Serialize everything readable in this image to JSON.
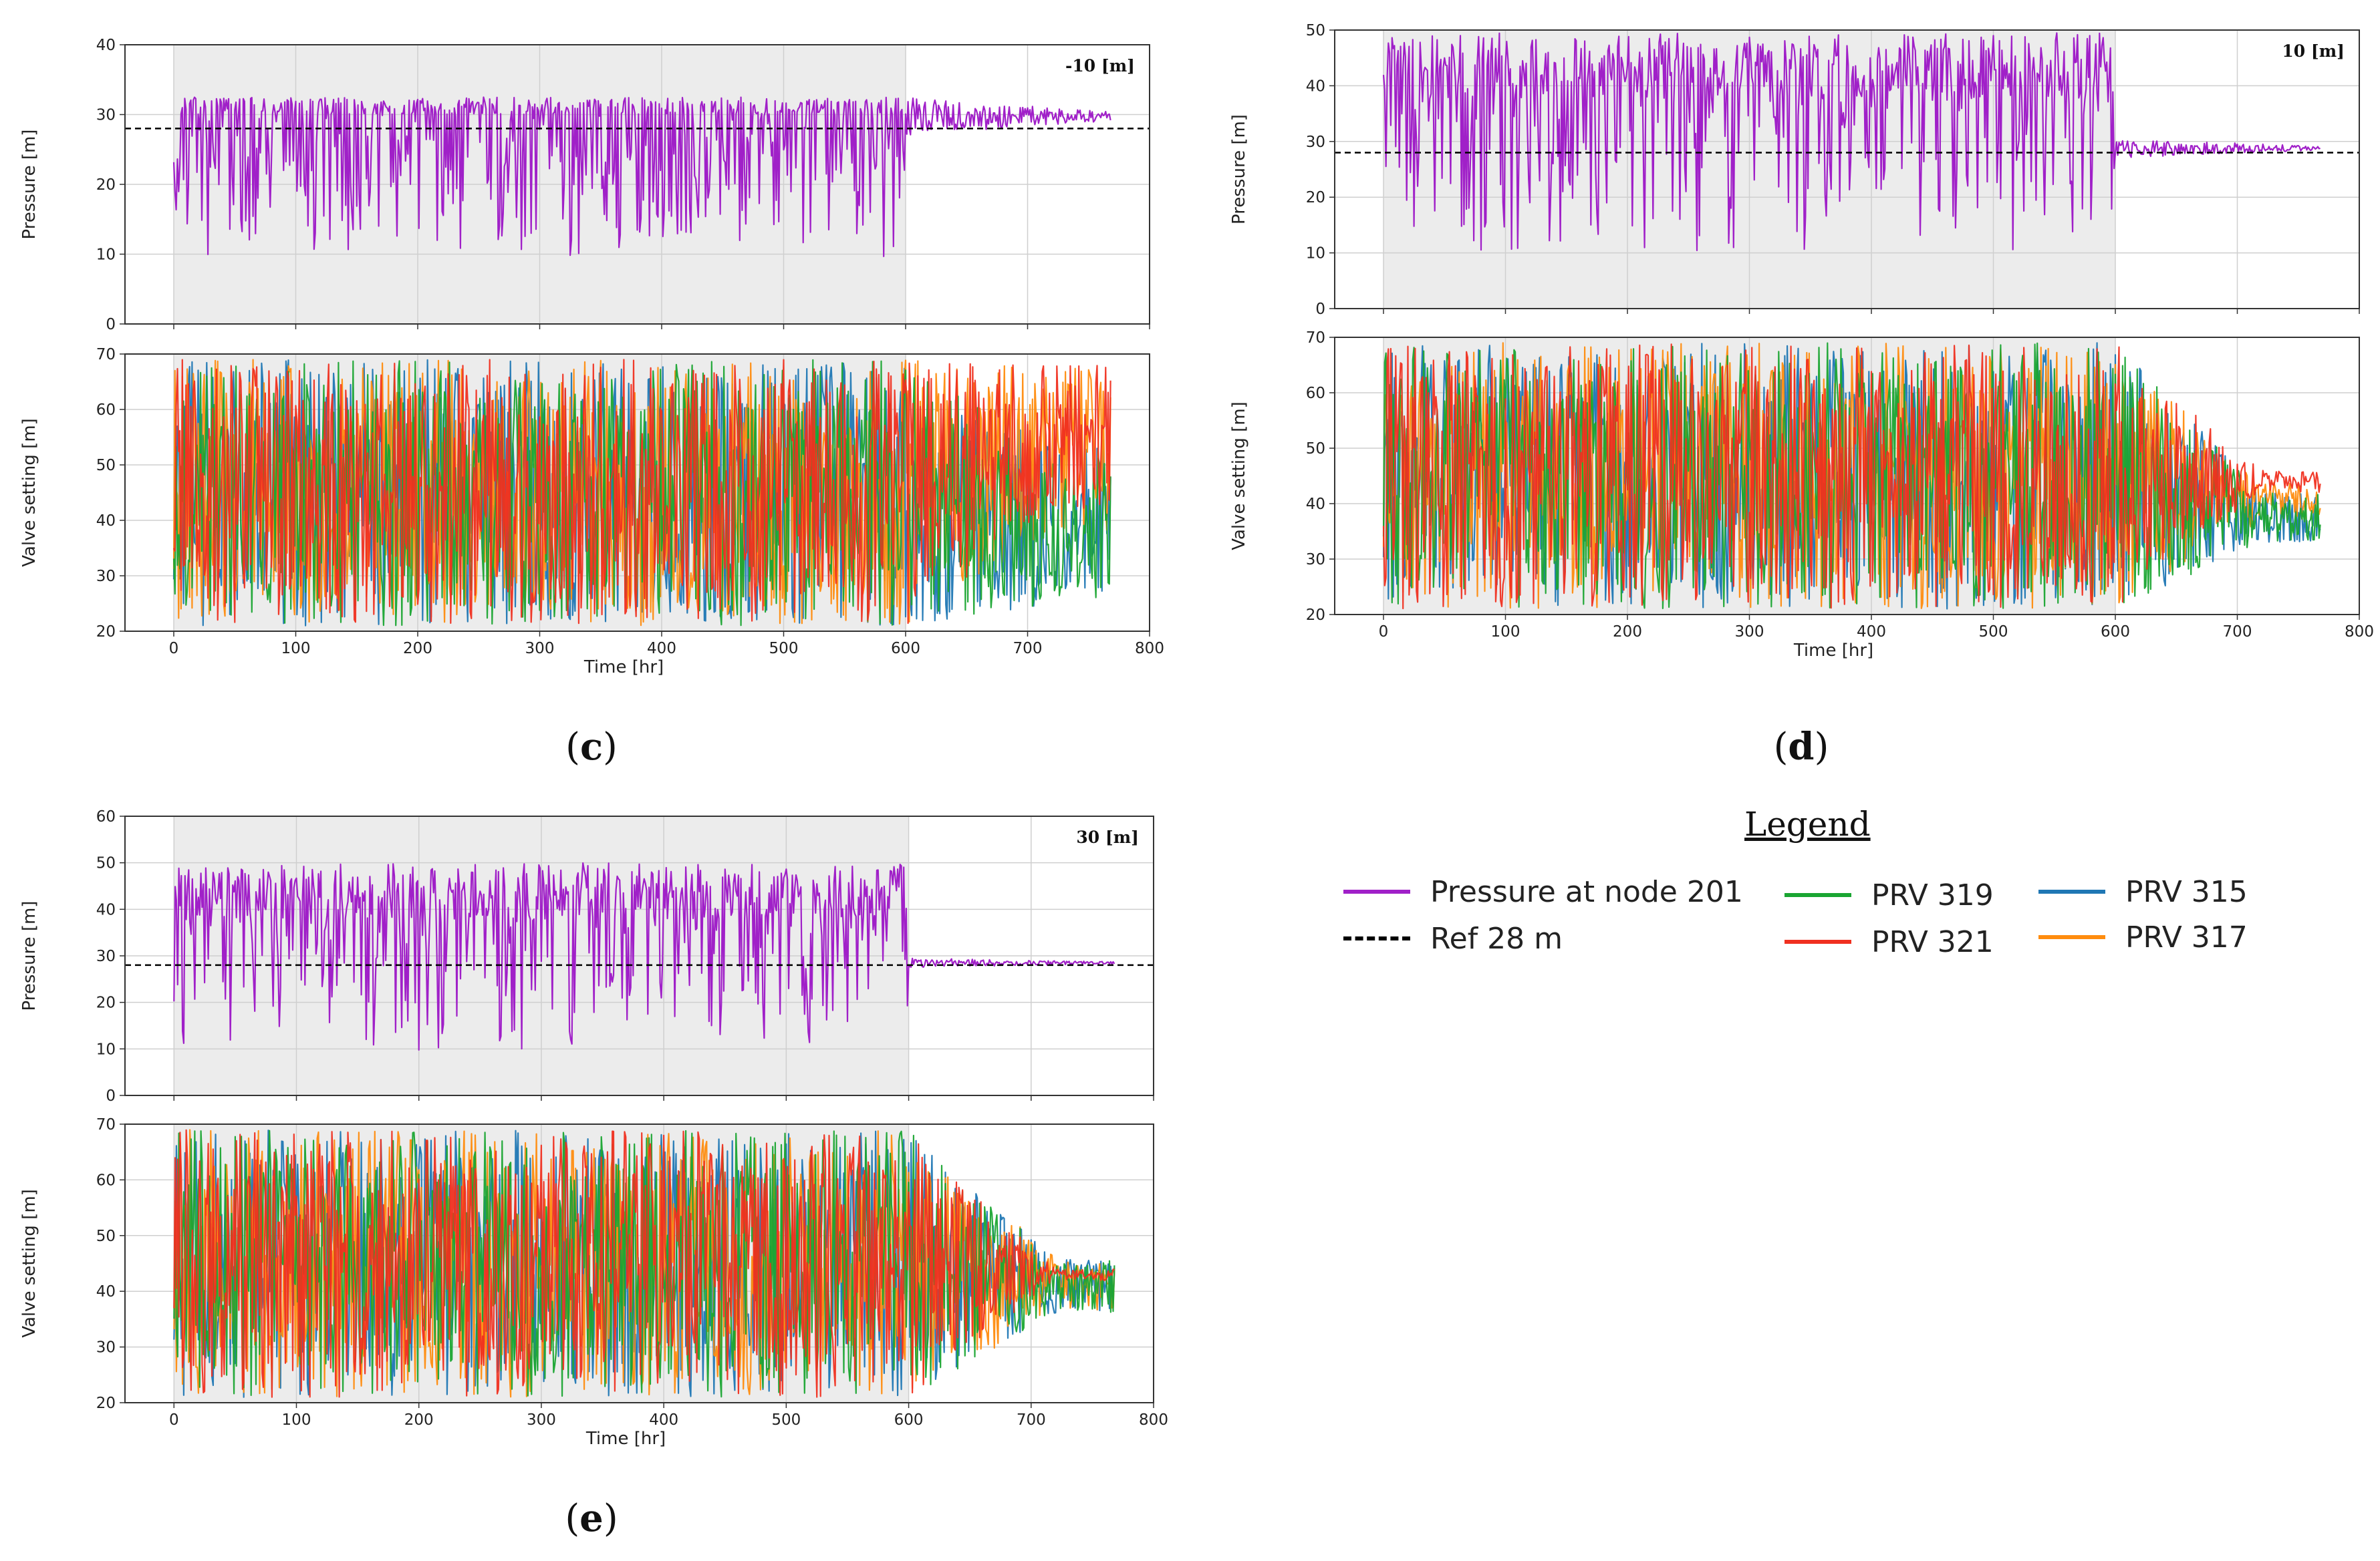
{
  "figure": {
    "colors": {
      "pressure": "#a020c8",
      "ref": "#000000",
      "prv319": "#1aa532",
      "prv321": "#f03020",
      "prv315": "#1f77b4",
      "prv317": "#ff8c0e",
      "shade": "#ececec",
      "grid": "#cfcfcf"
    }
  },
  "chart_data": [
    {
      "id": "c",
      "caption_open": "(",
      "caption_letter": "c",
      "caption_close": ")",
      "pressure_plot": {
        "type": "line",
        "tag": "-10 [m]",
        "ylabel": "Pressure [m]",
        "xlim": [
          -40,
          800
        ],
        "ylim": [
          0,
          40
        ],
        "yticks": [
          "0",
          "10",
          "20",
          "30",
          "40"
        ],
        "shaded_x": [
          0,
          600
        ],
        "ref_value": 28,
        "series": [
          {
            "name": "Pressure at node 201",
            "phase1_range": [
              8.5,
              32.5
            ],
            "phase2_range": [
              27,
              32.5
            ],
            "end_hour": 768
          }
        ]
      },
      "valve_plot": {
        "type": "line",
        "ylabel": "Valve setting [m]",
        "xlabel": "Time [hr]",
        "xlim": [
          -40,
          800
        ],
        "ylim": [
          20,
          70
        ],
        "yticks": [
          "20",
          "30",
          "40",
          "50",
          "60",
          "70"
        ],
        "xticks": [
          "0",
          "100",
          "200",
          "300",
          "400",
          "500",
          "600",
          "700",
          "800"
        ],
        "shaded_x": [
          0,
          600
        ],
        "series": [
          {
            "name": "PRV 315",
            "end_range": [
              25,
              55
            ]
          },
          {
            "name": "PRV 317",
            "end_range": [
              38,
              68
            ]
          },
          {
            "name": "PRV 319",
            "end_range": [
              25,
              52
            ]
          },
          {
            "name": "PRV 321",
            "end_range": [
              42,
              68
            ]
          }
        ]
      }
    },
    {
      "id": "d",
      "caption_open": "(",
      "caption_letter": "d",
      "caption_close": ")",
      "pressure_plot": {
        "type": "line",
        "tag": "10 [m]",
        "ylabel": "Pressure [m]",
        "xlim": [
          -40,
          800
        ],
        "ylim": [
          0,
          50
        ],
        "yticks": [
          "0",
          "10",
          "20",
          "30",
          "40",
          "50"
        ],
        "shaded_x": [
          0,
          600
        ],
        "ref_value": 28,
        "series": [
          {
            "name": "Pressure at node 201",
            "phase1_range": [
              8.5,
              49.5
            ],
            "phase2_range": [
              27,
              30.5
            ],
            "end_hour": 768
          }
        ]
      },
      "valve_plot": {
        "type": "line",
        "ylabel": "Valve setting [m]",
        "xlabel": "Time [hr]",
        "xlim": [
          -40,
          800
        ],
        "ylim": [
          20,
          70
        ],
        "yticks": [
          "20",
          "30",
          "40",
          "50",
          "60",
          "70"
        ],
        "xticks": [
          "0",
          "100",
          "200",
          "300",
          "400",
          "500",
          "600",
          "700",
          "800"
        ],
        "shaded_x": [
          0,
          600
        ],
        "series": [
          {
            "name": "PRV 315",
            "end_range": [
              33,
              42
            ]
          },
          {
            "name": "PRV 317",
            "end_range": [
              37,
              44
            ]
          },
          {
            "name": "PRV 319",
            "end_range": [
              33,
              42
            ]
          },
          {
            "name": "PRV 321",
            "end_range": [
              42,
              46
            ]
          }
        ]
      }
    },
    {
      "id": "e",
      "caption_open": "(",
      "caption_letter": "e",
      "caption_close": ")",
      "pressure_plot": {
        "type": "line",
        "tag": "30 [m]",
        "ylabel": "Pressure [m]",
        "xlim": [
          -40,
          800
        ],
        "ylim": [
          0,
          60
        ],
        "yticks": [
          "0",
          "10",
          "20",
          "30",
          "40",
          "50",
          "60"
        ],
        "shaded_x": [
          0,
          600
        ],
        "ref_value": 28,
        "series": [
          {
            "name": "Pressure at node 201",
            "phase1_range": [
              8.5,
              50
            ],
            "phase2_range": [
              27.5,
              29.5
            ],
            "end_hour": 768
          }
        ]
      },
      "valve_plot": {
        "type": "line",
        "ylabel": "Valve setting [m]",
        "xlabel": "Time [hr]",
        "xlim": [
          -40,
          800
        ],
        "ylim": [
          20,
          70
        ],
        "yticks": [
          "20",
          "30",
          "40",
          "50",
          "60",
          "70"
        ],
        "xticks": [
          "0",
          "100",
          "200",
          "300",
          "400",
          "500",
          "600",
          "700",
          "800"
        ],
        "shaded_x": [
          0,
          600
        ],
        "series": [
          {
            "name": "PRV 315",
            "end_range": [
              36,
              46
            ]
          },
          {
            "name": "PRV 317",
            "end_range": [
              36,
              46
            ]
          },
          {
            "name": "PRV 319",
            "end_range": [
              36,
              46
            ]
          },
          {
            "name": "PRV 321",
            "end_range": [
              42,
              44
            ]
          }
        ]
      }
    }
  ],
  "legend": {
    "title": "Legend",
    "entries": [
      {
        "key": "pressure",
        "label": "Pressure at node 201",
        "style": "solid"
      },
      {
        "key": "ref",
        "label": "Ref 28 m",
        "style": "dashed"
      },
      {
        "key": "prv319",
        "label": "PRV 319",
        "style": "solid"
      },
      {
        "key": "prv321",
        "label": "PRV 321",
        "style": "solid"
      },
      {
        "key": "prv315",
        "label": "PRV 315",
        "style": "solid"
      },
      {
        "key": "prv317",
        "label": "PRV 317",
        "style": "solid"
      }
    ]
  }
}
